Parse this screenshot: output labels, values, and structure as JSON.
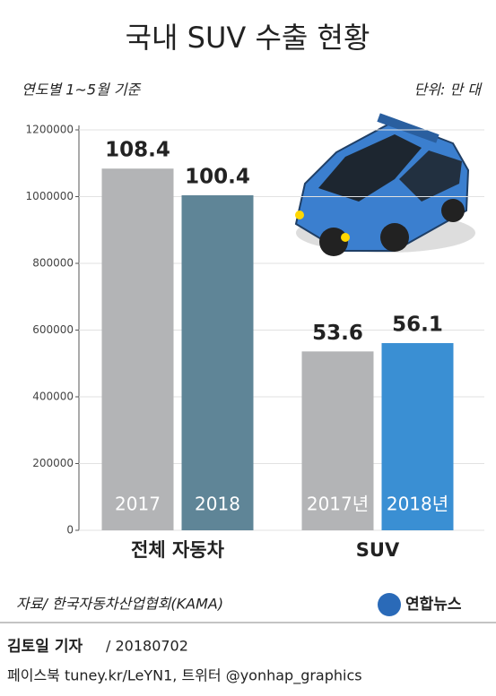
{
  "chart_data": {
    "type": "bar",
    "title": "국내 SUV 수출 현황",
    "subtitle": "연도별 1~5월 기준",
    "unit": "단위: 만 대",
    "categories": [
      "전체 자동차",
      "SUV"
    ],
    "series": [
      {
        "values": [
          1084000,
          536000
        ],
        "value_labels": [
          "108.4",
          "53.6"
        ],
        "bar_labels": [
          "2017",
          "2017년"
        ],
        "colors": [
          "#b3b4b6",
          "#b3b4b6"
        ]
      },
      {
        "values": [
          1004000,
          561000
        ],
        "value_labels": [
          "100.4",
          "56.1"
        ],
        "bar_labels": [
          "2018",
          "2018년"
        ],
        "colors": [
          "#5f8597",
          "#3a8fd3"
        ]
      }
    ],
    "ylim": [
      0,
      1200000
    ],
    "yticks": [
      0,
      200000,
      400000,
      600000,
      800000,
      1000000,
      1200000
    ],
    "grid": true
  },
  "footer": {
    "source": "자료/ 한국자동차산업협회(KAMA)",
    "logo": "연합뉴스",
    "author": "김토일 기자",
    "date": "/ 20180702",
    "contact": "페이스북 tuney.kr/LeYN1, 트위터 @yonhap_graphics"
  }
}
